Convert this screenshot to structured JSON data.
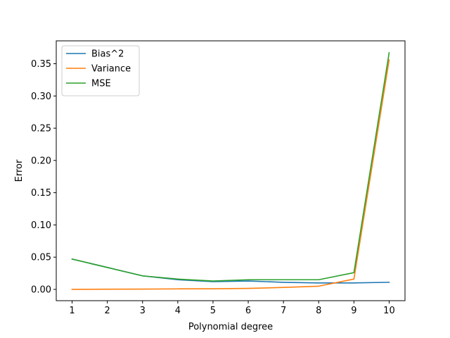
{
  "chart_data": {
    "type": "line",
    "title": "",
    "xlabel": "Polynomial degree",
    "ylabel": "Error",
    "x": [
      1,
      2,
      3,
      4,
      5,
      6,
      7,
      8,
      9,
      10
    ],
    "xticks": [
      1,
      2,
      3,
      4,
      5,
      6,
      7,
      8,
      9,
      10
    ],
    "xlim": [
      0.55,
      10.45
    ],
    "yticks": [
      "0.00",
      "0.05",
      "0.10",
      "0.15",
      "0.20",
      "0.25",
      "0.30",
      "0.35"
    ],
    "ylim": [
      -0.0175,
      0.3855
    ],
    "grid": false,
    "legend_position": "top-left",
    "series": [
      {
        "name": "Bias^2",
        "color": "#1f77b4",
        "values": [
          0.047,
          0.034,
          0.021,
          0.015,
          0.012,
          0.013,
          0.011,
          0.01,
          0.01,
          0.011
        ]
      },
      {
        "name": "Variance",
        "color": "#ff7f0e",
        "values": [
          0.0,
          0.0003,
          0.0005,
          0.0008,
          0.001,
          0.0015,
          0.003,
          0.005,
          0.016,
          0.356
        ]
      },
      {
        "name": "MSE",
        "color": "#2ca02c",
        "values": [
          0.047,
          0.034,
          0.021,
          0.016,
          0.013,
          0.015,
          0.015,
          0.015,
          0.026,
          0.367
        ]
      }
    ]
  }
}
